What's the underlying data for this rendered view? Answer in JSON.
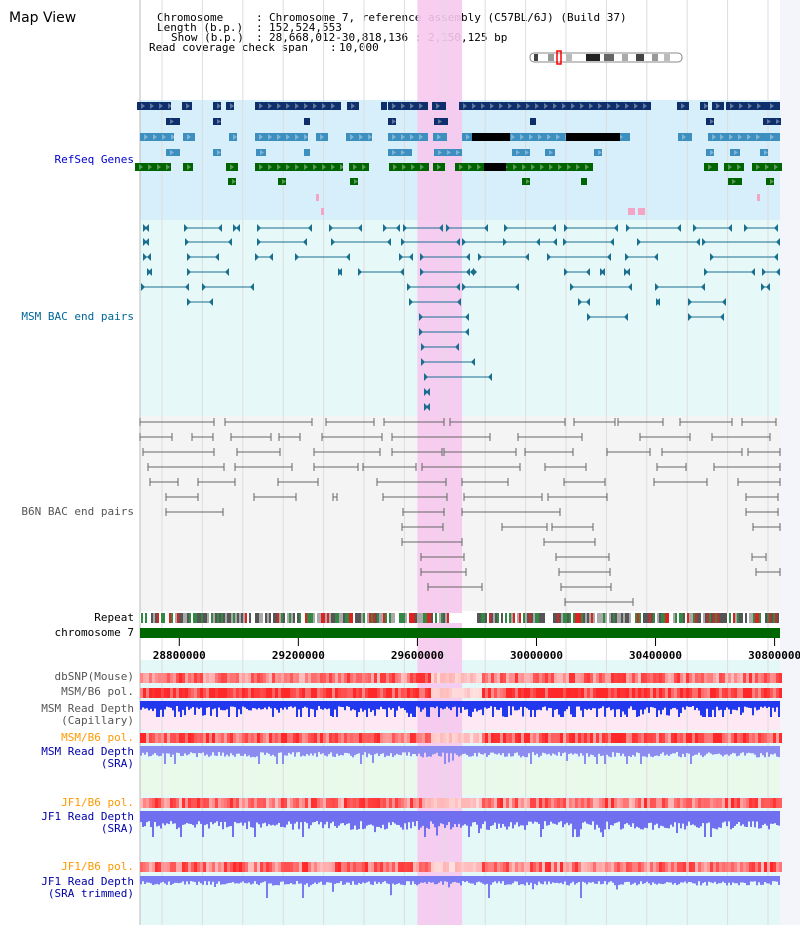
{
  "view": {
    "title": "Map View",
    "header": {
      "chromosome_key": "Chromosome",
      "chromosome_val": "Chromosome 7, reference assembly (C57BL/6J) (Build 37)",
      "length_key": "Length (b.p.)",
      "length_val": "152,524,553",
      "show_key": "Show (b.p.)",
      "show_val": "28,668,012-30,818,136 : 2,150,125 bp",
      "coverage_key": "Read coverage check span",
      "coverage_val": "10,000"
    }
  },
  "tracks": {
    "refseq": {
      "label": "RefSeq Genes",
      "color": "#0000cc"
    },
    "msm_bac": {
      "label": "MSM BAC end pairs",
      "color": "#006699"
    },
    "b6n_bac": {
      "label": "B6N BAC end pairs",
      "color": "#666666"
    },
    "repeat": {
      "label": "Repeat",
      "color": "#000000"
    },
    "chromosome": {
      "label": "chromosome 7",
      "color": "#000000"
    },
    "dbsnp": {
      "label": "dbSNP(Mouse)",
      "color": "#555555"
    },
    "msm_pol_cap": {
      "label": "MSM/B6 pol.",
      "color": "#555555"
    },
    "msm_depth_cap": {
      "label": "MSM Read Depth\n(Capillary)",
      "color": "#555555"
    },
    "msm_pol_sra": {
      "label": "MSM/B6 pol.",
      "color": "#ff9900"
    },
    "msm_depth_sra": {
      "label": "MSM Read Depth\n(SRA)",
      "color": "#0000aa"
    },
    "jf1_pol": {
      "label": "JF1/B6 pol.",
      "color": "#ff9900"
    },
    "jf1_depth": {
      "label": "JF1 Read Depth\n(SRA)",
      "color": "#0000aa"
    },
    "jf1_pol2": {
      "label": "JF1/B6 pol.",
      "color": "#ff9900"
    },
    "jf1_depth_trim": {
      "label": "JF1 Read Depth\n(SRA trimmed)",
      "color": "#0000aa"
    }
  },
  "axis": {
    "ticks": [
      "28800000",
      "29200000",
      "29600000",
      "30000000",
      "30400000",
      "30800000"
    ],
    "tick_values": [
      28800000,
      29200000,
      29600000,
      30000000,
      30400000,
      30800000
    ],
    "range": [
      28668012,
      30818136
    ]
  },
  "highlight": {
    "start": 29600000,
    "end": 29750000,
    "color": "#f6c8ee"
  },
  "colors": {
    "refseq_bg": "#d6effa",
    "msm_bg": "#e6f8f8",
    "b6n_bg": "#f4f4f4",
    "refseq_dark": "#0e2f6b",
    "refseq_mid": "#3d8fbf",
    "refseq_green": "#006400",
    "msm_line": "#1a6f8f",
    "b6n_line": "#666666",
    "chrom_bar": "#006600"
  }
}
